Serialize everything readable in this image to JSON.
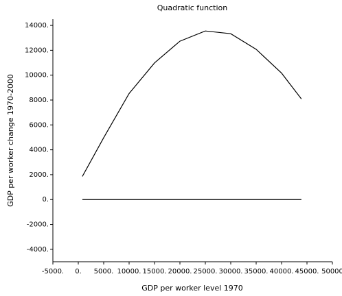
{
  "chart_data": {
    "type": "line",
    "title": "Quadratic function",
    "x_label": "GDP per worker level 1970",
    "y_label": "GDP per worker change 1970-2000",
    "x": [
      800,
      5000,
      10000,
      15000,
      20000,
      25000,
      30000,
      35000,
      40000,
      43900
    ],
    "series": [
      {
        "color": "#000000",
        "values": [
          1858,
          4973,
          8525,
          10984,
          12732,
          13552,
          13333,
          12077,
          10164,
          8087
        ]
      },
      {
        "color": "#000000",
        "values": [
          0,
          0,
          0,
          0,
          0,
          0,
          0,
          0,
          0,
          0
        ]
      }
    ],
    "xlim": [
      -5000,
      50000
    ],
    "xticks": [
      {
        "value": -5000,
        "label": "-5000."
      },
      {
        "value": 0,
        "label": "0."
      },
      {
        "value": 5000,
        "label": "5000."
      },
      {
        "value": 10000,
        "label": "10000."
      },
      {
        "value": 15000,
        "label": "15000."
      },
      {
        "value": 20000,
        "label": "20000."
      },
      {
        "value": 25000,
        "label": "25000."
      },
      {
        "value": 30000,
        "label": "30000."
      },
      {
        "value": 35000,
        "label": "35000."
      },
      {
        "value": 40000,
        "label": "40000."
      },
      {
        "value": 45000,
        "label": "45000."
      },
      50000
    ],
    "ylim": [
      -5000,
      14500
    ],
    "yticks": [
      {
        "value": -4000,
        "label": "-4000."
      },
      {
        "value": -2000,
        "label": "-2000."
      },
      {
        "value": 0,
        "label": "0."
      },
      {
        "value": 2000,
        "label": "2000."
      },
      {
        "value": 4000,
        "label": "4000."
      },
      {
        "value": 6000,
        "label": "6000."
      },
      {
        "value": 8000,
        "label": "8000."
      },
      {
        "value": 10000,
        "label": "10000."
      },
      {
        "value": 12000,
        "label": "12000."
      },
      {
        "value": 14000,
        "label": "14000."
      }
    ],
    "grid": false
  }
}
